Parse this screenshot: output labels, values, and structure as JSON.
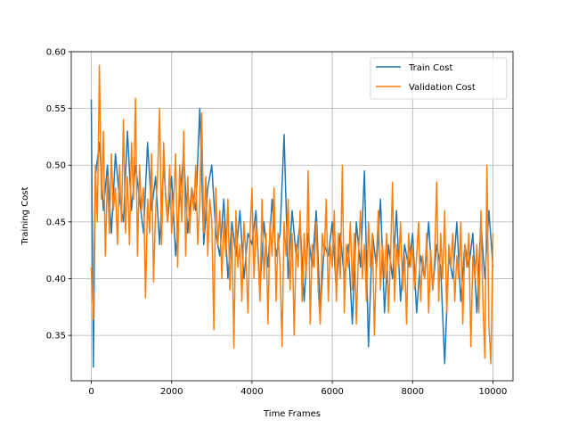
{
  "chart_data": {
    "type": "line",
    "title": "",
    "xlabel": "Time Frames",
    "ylabel": "Training Cost",
    "xlim": [
      -500,
      10500
    ],
    "ylim": [
      0.31,
      0.6
    ],
    "xticks": [
      0,
      2000,
      4000,
      6000,
      8000,
      10000
    ],
    "xtick_labels": [
      "0",
      "2000",
      "4000",
      "6000",
      "8000",
      "10000"
    ],
    "yticks": [
      0.35,
      0.4,
      0.45,
      0.5,
      0.55,
      0.6
    ],
    "ytick_labels": [
      "0.35",
      "0.40",
      "0.45",
      "0.50",
      "0.55",
      "0.60"
    ],
    "grid": true,
    "legend_position": "top-right",
    "series": [
      {
        "name": "Train Cost",
        "color": "#1f77b4",
        "x": [
          0,
          50,
          100,
          200,
          300,
          400,
          500,
          600,
          700,
          800,
          900,
          1000,
          1100,
          1200,
          1300,
          1400,
          1500,
          1600,
          1700,
          1800,
          1900,
          2000,
          2100,
          2200,
          2300,
          2400,
          2500,
          2600,
          2700,
          2800,
          2900,
          3000,
          3100,
          3200,
          3300,
          3400,
          3500,
          3600,
          3700,
          3800,
          3900,
          4000,
          4100,
          4200,
          4300,
          4400,
          4500,
          4600,
          4700,
          4800,
          4900,
          5000,
          5100,
          5200,
          5300,
          5400,
          5500,
          5600,
          5700,
          5800,
          5900,
          6000,
          6100,
          6200,
          6300,
          6400,
          6500,
          6600,
          6700,
          6800,
          6900,
          7000,
          7100,
          7200,
          7300,
          7400,
          7500,
          7600,
          7700,
          7800,
          7900,
          8000,
          8100,
          8200,
          8300,
          8400,
          8500,
          8600,
          8700,
          8800,
          8900,
          9000,
          9100,
          9200,
          9300,
          9400,
          9500,
          9600,
          9700,
          9800,
          9900,
          10000
        ],
        "values": [
          0.558,
          0.322,
          0.49,
          0.52,
          0.46,
          0.5,
          0.44,
          0.51,
          0.47,
          0.45,
          0.53,
          0.46,
          0.5,
          0.47,
          0.44,
          0.52,
          0.46,
          0.49,
          0.43,
          0.5,
          0.45,
          0.49,
          0.42,
          0.47,
          0.51,
          0.44,
          0.48,
          0.46,
          0.55,
          0.43,
          0.48,
          0.5,
          0.44,
          0.42,
          0.47,
          0.4,
          0.45,
          0.42,
          0.46,
          0.4,
          0.44,
          0.43,
          0.46,
          0.39,
          0.45,
          0.41,
          0.47,
          0.42,
          0.44,
          0.527,
          0.4,
          0.46,
          0.42,
          0.45,
          0.38,
          0.44,
          0.41,
          0.46,
          0.37,
          0.43,
          0.42,
          0.45,
          0.39,
          0.44,
          0.4,
          0.43,
          0.36,
          0.45,
          0.41,
          0.495,
          0.34,
          0.44,
          0.41,
          0.47,
          0.37,
          0.43,
          0.4,
          0.46,
          0.38,
          0.43,
          0.41,
          0.44,
          0.37,
          0.42,
          0.4,
          0.45,
          0.39,
          0.43,
          0.41,
          0.325,
          0.42,
          0.4,
          0.45,
          0.38,
          0.43,
          0.41,
          0.44,
          0.37,
          0.45,
          0.4,
          0.46,
          0.41
        ]
      },
      {
        "name": "Validation Cost",
        "color": "#ff7f0e",
        "x": [
          0,
          50,
          100,
          150,
          200,
          250,
          300,
          350,
          400,
          450,
          500,
          550,
          600,
          650,
          700,
          750,
          800,
          850,
          900,
          950,
          1000,
          1050,
          1100,
          1150,
          1200,
          1250,
          1300,
          1350,
          1400,
          1450,
          1500,
          1550,
          1600,
          1650,
          1700,
          1750,
          1800,
          1850,
          1900,
          1950,
          2000,
          2050,
          2100,
          2150,
          2200,
          2250,
          2300,
          2350,
          2400,
          2450,
          2500,
          2550,
          2600,
          2650,
          2700,
          2750,
          2800,
          2850,
          2900,
          2950,
          3000,
          3050,
          3100,
          3150,
          3200,
          3250,
          3300,
          3350,
          3400,
          3450,
          3500,
          3550,
          3600,
          3650,
          3700,
          3750,
          3800,
          3850,
          3900,
          3950,
          4000,
          4050,
          4100,
          4150,
          4200,
          4250,
          4300,
          4350,
          4400,
          4450,
          4500,
          4550,
          4600,
          4650,
          4700,
          4750,
          4800,
          4850,
          4900,
          4950,
          5000,
          5050,
          5100,
          5150,
          5200,
          5250,
          5300,
          5350,
          5400,
          5450,
          5500,
          5550,
          5600,
          5650,
          5700,
          5750,
          5800,
          5850,
          5900,
          5950,
          6000,
          6050,
          6100,
          6150,
          6200,
          6250,
          6300,
          6350,
          6400,
          6450,
          6500,
          6550,
          6600,
          6650,
          6700,
          6750,
          6800,
          6850,
          6900,
          6950,
          7000,
          7050,
          7100,
          7150,
          7200,
          7250,
          7300,
          7350,
          7400,
          7450,
          7500,
          7550,
          7600,
          7650,
          7700,
          7750,
          7800,
          7850,
          7900,
          7950,
          8000,
          8050,
          8100,
          8150,
          8200,
          8250,
          8300,
          8350,
          8400,
          8450,
          8500,
          8550,
          8600,
          8650,
          8700,
          8750,
          8800,
          8850,
          8900,
          8950,
          9000,
          9050,
          9100,
          9150,
          9200,
          9250,
          9300,
          9350,
          9400,
          9450,
          9500,
          9550,
          9600,
          9650,
          9700,
          9750,
          9800,
          9850,
          9900,
          9950,
          10000
        ],
        "values": [
          0.41,
          0.364,
          0.5,
          0.45,
          0.588,
          0.47,
          0.53,
          0.42,
          0.49,
          0.44,
          0.51,
          0.46,
          0.48,
          0.43,
          0.5,
          0.45,
          0.54,
          0.44,
          0.49,
          0.43,
          0.52,
          0.47,
          0.559,
          0.42,
          0.5,
          0.46,
          0.48,
          0.383,
          0.47,
          0.44,
          0.51,
          0.397,
          0.46,
          0.49,
          0.55,
          0.43,
          0.52,
          0.47,
          0.45,
          0.5,
          0.44,
          0.47,
          0.51,
          0.41,
          0.5,
          0.45,
          0.53,
          0.42,
          0.49,
          0.44,
          0.48,
          0.46,
          0.5,
          0.43,
          0.47,
          0.546,
          0.44,
          0.49,
          0.42,
          0.47,
          0.45,
          0.355,
          0.48,
          0.43,
          0.46,
          0.4,
          0.45,
          0.42,
          0.47,
          0.39,
          0.44,
          0.339,
          0.46,
          0.41,
          0.43,
          0.38,
          0.45,
          0.42,
          0.37,
          0.44,
          0.48,
          0.4,
          0.45,
          0.42,
          0.38,
          0.47,
          0.4,
          0.44,
          0.36,
          0.45,
          0.42,
          0.48,
          0.38,
          0.44,
          0.41,
          0.34,
          0.45,
          0.42,
          0.47,
          0.39,
          0.44,
          0.35,
          0.43,
          0.41,
          0.46,
          0.38,
          0.44,
          0.4,
          0.495,
          0.36,
          0.43,
          0.41,
          0.45,
          0.39,
          0.36,
          0.44,
          0.42,
          0.47,
          0.38,
          0.43,
          0.41,
          0.46,
          0.38,
          0.44,
          0.4,
          0.5,
          0.37,
          0.43,
          0.41,
          0.45,
          0.39,
          0.44,
          0.36,
          0.42,
          0.46,
          0.4,
          0.43,
          0.38,
          0.45,
          0.41,
          0.44,
          0.35,
          0.42,
          0.46,
          0.39,
          0.43,
          0.4,
          0.44,
          0.37,
          0.42,
          0.485,
          0.38,
          0.43,
          0.41,
          0.45,
          0.39,
          0.42,
          0.36,
          0.44,
          0.41,
          0.43,
          0.39,
          0.42,
          0.45,
          0.38,
          0.42,
          0.4,
          0.44,
          0.37,
          0.425,
          0.39,
          0.42,
          0.485,
          0.38,
          0.44,
          0.4,
          0.46,
          0.37,
          0.43,
          0.41,
          0.44,
          0.38,
          0.42,
          0.4,
          0.45,
          0.36,
          0.43,
          0.41,
          0.44,
          0.34,
          0.42,
          0.4,
          0.43,
          0.37,
          0.46,
          0.38,
          0.33,
          0.5,
          0.36,
          0.325,
          0.44
        ]
      }
    ]
  }
}
